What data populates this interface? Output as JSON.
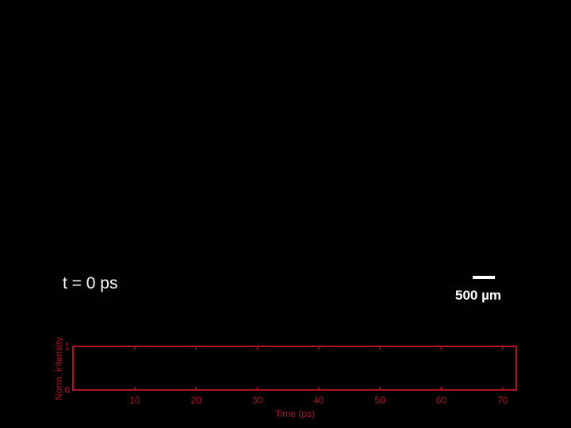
{
  "overlay": {
    "time_label": "t = 0 ps",
    "scale_bar_label": "500 µm"
  },
  "chart_data": {
    "type": "line",
    "title": "",
    "xlabel": "Time (ps)",
    "ylabel": "Norm. intensity",
    "xlim": [
      0,
      72
    ],
    "ylim": [
      0,
      1
    ],
    "xticks": [
      10,
      20,
      30,
      40,
      50,
      60,
      70
    ],
    "yticks": [
      0,
      1
    ],
    "grid": false,
    "series": [
      {
        "x": [],
        "y": []
      }
    ],
    "color": "#b0141c"
  }
}
